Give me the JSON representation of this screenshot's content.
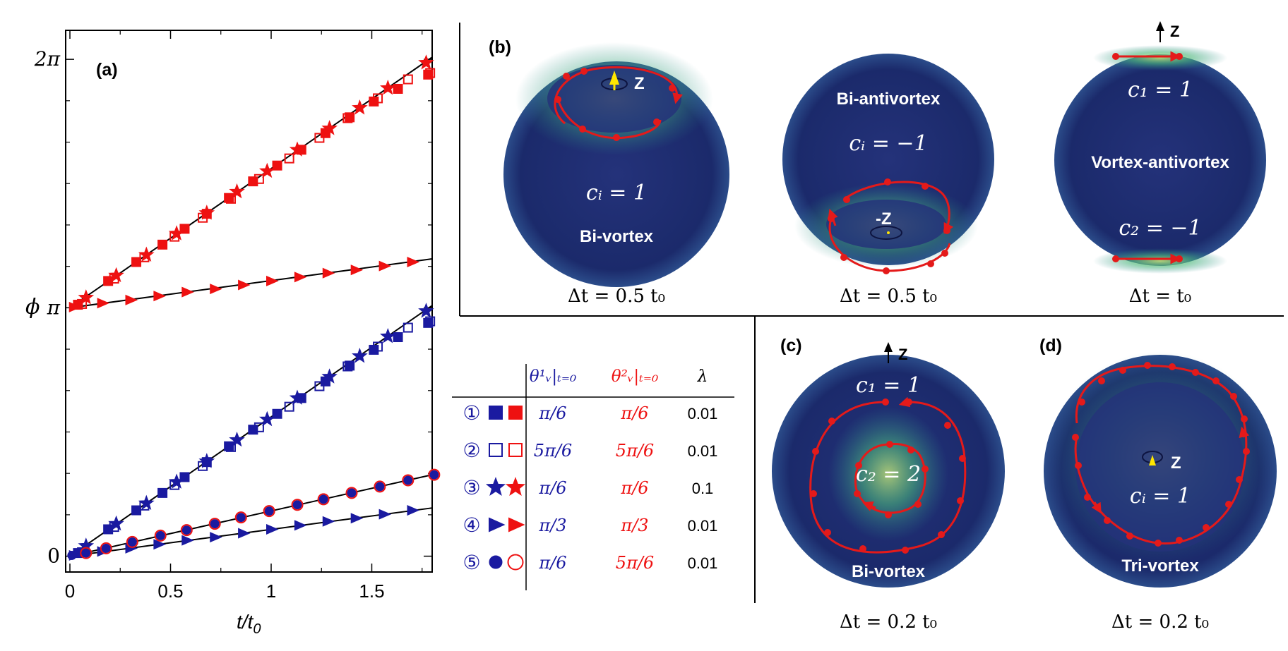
{
  "chart_data": {
    "type": "scatter",
    "panel": "(a)",
    "xlabel": "t/t",
    "xlabel_sub": "0",
    "ylabel": "ϕ",
    "xlim": [
      0,
      1.8
    ],
    "ylim": [
      -0.2,
      6.65
    ],
    "x_ticks": [
      {
        "value": 0,
        "label": "0"
      },
      {
        "value": 0.5,
        "label": "0.5"
      },
      {
        "value": 1,
        "label": "1"
      },
      {
        "value": 1.5,
        "label": "1.5"
      }
    ],
    "y_ticks": [
      {
        "value": 0,
        "label": "0"
      },
      {
        "value": 3.1416,
        "label": "π"
      },
      {
        "value": 6.2832,
        "label": "2π"
      }
    ],
    "theory_lines": [
      {
        "name": "line-1-3-blue",
        "x": [
          0,
          1.8
        ],
        "y": [
          0,
          3.17
        ]
      },
      {
        "name": "line-4-blue",
        "x": [
          0,
          1.8
        ],
        "y": [
          0,
          0.61
        ]
      },
      {
        "name": "line-5",
        "x": [
          0,
          1.8
        ],
        "y": [
          0,
          1.03
        ]
      },
      {
        "name": "line-1-3-red",
        "x": [
          0,
          1.8
        ],
        "y": [
          3.1416,
          6.31
        ]
      },
      {
        "name": "line-4-red",
        "x": [
          0,
          1.8
        ],
        "y": [
          3.1416,
          3.76
        ]
      }
    ],
    "series": [
      {
        "name": "case1-blue-square",
        "color": "#1a1aa0",
        "marker": "square",
        "fill": true,
        "x": [
          0.04,
          0.19,
          0.33,
          0.46,
          0.57,
          0.68,
          0.79,
          0.91,
          1.03,
          1.15,
          1.27,
          1.39,
          1.51,
          1.63,
          1.78
        ],
        "y": [
          0.04,
          0.34,
          0.58,
          0.8,
          1.0,
          1.19,
          1.39,
          1.6,
          1.8,
          2.0,
          2.21,
          2.41,
          2.61,
          2.77,
          2.95
        ]
      },
      {
        "name": "case1-red-square",
        "color": "#ee1111",
        "marker": "square",
        "fill": true,
        "x": [
          0.04,
          0.19,
          0.33,
          0.46,
          0.57,
          0.68,
          0.79,
          0.91,
          1.03,
          1.15,
          1.27,
          1.39,
          1.51,
          1.63,
          1.78
        ],
        "y": [
          3.18,
          3.48,
          3.72,
          3.94,
          4.14,
          4.33,
          4.53,
          4.74,
          4.94,
          5.14,
          5.35,
          5.55,
          5.75,
          5.91,
          6.09
        ]
      },
      {
        "name": "case2-blue-open-square",
        "color": "#1a1aa0",
        "marker": "square",
        "fill": false,
        "x": [
          0.06,
          0.22,
          0.37,
          0.52,
          0.66,
          0.8,
          0.94,
          1.09,
          1.24,
          1.38,
          1.53,
          1.68,
          1.79
        ],
        "y": [
          0.05,
          0.37,
          0.64,
          0.9,
          1.14,
          1.38,
          1.63,
          1.89,
          2.15,
          2.4,
          2.65,
          2.89,
          2.97
        ]
      },
      {
        "name": "case2-red-open-square",
        "color": "#ee1111",
        "marker": "square",
        "fill": false,
        "x": [
          0.06,
          0.22,
          0.37,
          0.52,
          0.66,
          0.8,
          0.94,
          1.09,
          1.24,
          1.38,
          1.53,
          1.68,
          1.79
        ],
        "y": [
          3.19,
          3.51,
          3.78,
          4.04,
          4.28,
          4.52,
          4.77,
          5.03,
          5.29,
          5.54,
          5.79,
          6.03,
          6.11
        ]
      },
      {
        "name": "case3-blue-star",
        "color": "#1a1aa0",
        "marker": "star",
        "fill": true,
        "x": [
          0.08,
          0.23,
          0.38,
          0.53,
          0.68,
          0.83,
          0.98,
          1.13,
          1.29,
          1.44,
          1.58,
          1.77
        ],
        "y": [
          0.13,
          0.41,
          0.67,
          0.94,
          1.2,
          1.47,
          1.73,
          2.0,
          2.27,
          2.53,
          2.78,
          3.1
        ]
      },
      {
        "name": "case3-red-star",
        "color": "#ee1111",
        "marker": "star",
        "fill": true,
        "x": [
          0.08,
          0.23,
          0.38,
          0.53,
          0.68,
          0.83,
          0.98,
          1.13,
          1.29,
          1.44,
          1.58,
          1.77
        ],
        "y": [
          3.27,
          3.55,
          3.81,
          4.08,
          4.34,
          4.61,
          4.87,
          5.14,
          5.41,
          5.67,
          5.92,
          6.24
        ]
      },
      {
        "name": "case4-blue-triangle",
        "color": "#1a1aa0",
        "marker": "triangle",
        "fill": true,
        "x": [
          0.02,
          0.16,
          0.3,
          0.44,
          0.58,
          0.72,
          0.86,
          1.0,
          1.14,
          1.28,
          1.42,
          1.56,
          1.7
        ],
        "y": [
          0.01,
          0.06,
          0.1,
          0.15,
          0.2,
          0.24,
          0.29,
          0.34,
          0.39,
          0.44,
          0.48,
          0.53,
          0.58
        ]
      },
      {
        "name": "case4-red-triangle",
        "color": "#ee1111",
        "marker": "triangle",
        "fill": true,
        "x": [
          0.02,
          0.16,
          0.3,
          0.44,
          0.58,
          0.72,
          0.86,
          1.0,
          1.14,
          1.28,
          1.42,
          1.56,
          1.7
        ],
        "y": [
          3.15,
          3.2,
          3.24,
          3.29,
          3.34,
          3.38,
          3.43,
          3.48,
          3.53,
          3.58,
          3.62,
          3.67,
          3.72
        ]
      },
      {
        "name": "case5-blue-circle",
        "color": "#1a1aa0",
        "marker": "circle",
        "fill": true,
        "x": [
          0.01,
          0.08,
          0.18,
          0.31,
          0.45,
          0.58,
          0.72,
          0.85,
          0.99,
          1.13,
          1.26,
          1.4,
          1.54,
          1.68,
          1.81
        ],
        "y": [
          0.01,
          0.04,
          0.1,
          0.18,
          0.26,
          0.33,
          0.41,
          0.49,
          0.57,
          0.65,
          0.72,
          0.8,
          0.88,
          0.96,
          1.03
        ]
      },
      {
        "name": "case5-red-open-circle",
        "color": "#ee1111",
        "marker": "circle",
        "fill": false,
        "x": [
          0.08,
          0.18,
          0.31,
          0.45,
          0.58,
          0.72,
          0.85,
          0.99,
          1.13,
          1.26,
          1.4,
          1.54,
          1.68,
          1.81
        ],
        "y": [
          0.04,
          0.1,
          0.18,
          0.26,
          0.33,
          0.41,
          0.49,
          0.57,
          0.65,
          0.72,
          0.8,
          0.88,
          0.96,
          1.03
        ]
      }
    ]
  },
  "table": {
    "headers": {
      "theta1": "θ¹ᵥ|ₜ₌₀",
      "theta2": "θ²ᵥ|ₜ₌₀",
      "lambda": "λ"
    },
    "rows": [
      {
        "num": "①",
        "m1": "square",
        "f1": true,
        "m2": "square",
        "f2": true,
        "theta1": "π/6",
        "theta2": "π/6",
        "lambda": "0.01"
      },
      {
        "num": "②",
        "m1": "square",
        "f1": false,
        "m2": "square",
        "f2": false,
        "theta1": "5π/6",
        "theta2": "5π/6",
        "lambda": "0.01"
      },
      {
        "num": "③",
        "m1": "star",
        "f1": true,
        "m2": "star",
        "f2": true,
        "theta1": "π/6",
        "theta2": "π/6",
        "lambda": "0.1"
      },
      {
        "num": "④",
        "m1": "triangle",
        "f1": true,
        "m2": "triangle",
        "f2": true,
        "theta1": "π/3",
        "theta2": "π/3",
        "lambda": "0.01"
      },
      {
        "num": "⑤",
        "m1": "circle",
        "f1": true,
        "m2": "circle",
        "f2": false,
        "theta1": "π/6",
        "theta2": "5π/6",
        "lambda": "0.01"
      }
    ]
  },
  "spheres": {
    "b1": {
      "z": "Z",
      "ci": "cᵢ = 1",
      "name": "Bi-vortex",
      "dt": "Δt = 0.5 t₀"
    },
    "b2": {
      "title": "Bi-antivortex",
      "ci": "cᵢ = −1",
      "z": "-Z",
      "dt": "Δt = 0.5 t₀"
    },
    "b3": {
      "z": "Z",
      "c1": "c₁ = 1",
      "name": "Vortex-antivortex",
      "c2": "c₂ = −1",
      "dt": "Δt = t₀"
    },
    "c": {
      "z": "Z",
      "c1": "c₁ = 1",
      "c2": "c₂ = 2",
      "name": "Bi-vortex",
      "dt": "Δt = 0.2 t₀"
    },
    "d": {
      "z": "Z",
      "ci": "cᵢ = 1",
      "name": "Tri-vortex",
      "dt": "Δt = 0.2 t₀"
    }
  },
  "labels": {
    "a": "(a)",
    "b": "(b)",
    "c": "(c)",
    "d": "(d)"
  },
  "colors": {
    "blue": "#1a1aa0",
    "red": "#ee1111",
    "sphere_dark": "#1e2a78",
    "glow": "#8ad08a"
  }
}
